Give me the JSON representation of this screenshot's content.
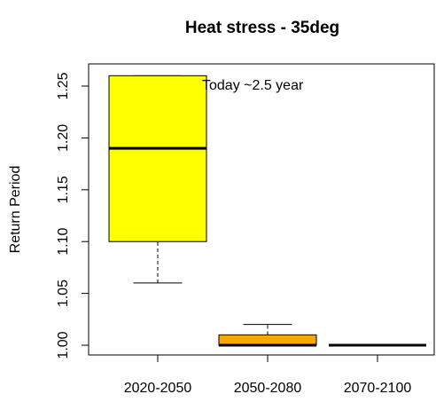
{
  "chart_data": {
    "type": "boxplot",
    "title": "Heat stress - 35deg",
    "y_label": "Return Period",
    "annotation": "Today ~2.5 year",
    "categories": [
      "2020-2050",
      "2050-2080",
      "2070-2100"
    ],
    "min": [
      1.06,
      1.0,
      1.0
    ],
    "q1": [
      1.1,
      1.0,
      1.0
    ],
    "median": [
      1.19,
      1.0,
      1.0
    ],
    "q3": [
      1.26,
      1.01,
      1.0
    ],
    "max": [
      1.26,
      1.02,
      1.0
    ],
    "colors": [
      "#ffff00",
      "#ffa500",
      "#ffa500"
    ],
    "ylim": [
      0.9906,
      1.2714
    ],
    "yticks": [
      {
        "value": 1.0,
        "label": "1.00"
      },
      {
        "value": 1.05,
        "label": "1.05"
      },
      {
        "value": 1.1,
        "label": "1.10"
      },
      {
        "value": 1.15,
        "label": "1.15"
      },
      {
        "value": 1.2,
        "label": "1.20"
      },
      {
        "value": 1.25,
        "label": "1.25"
      }
    ]
  }
}
